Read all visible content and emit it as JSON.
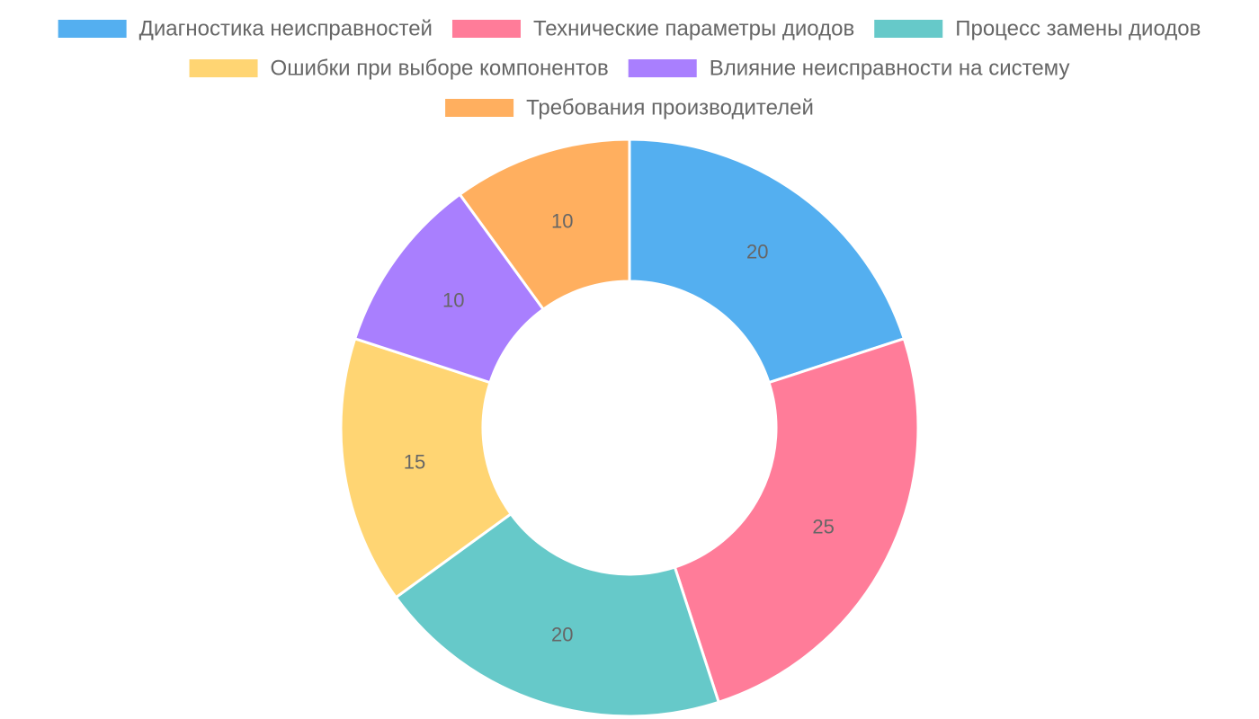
{
  "chart_data": {
    "type": "doughnut",
    "categories": [
      "Диагностика неисправностей",
      "Технические параметры диодов",
      "Процесс замены диодов",
      "Ошибки при выборе компонентов",
      "Влияние неисправности на систему",
      "Требования производителей"
    ],
    "values": [
      20,
      25,
      20,
      15,
      10,
      10
    ],
    "colors": [
      "#54aff0",
      "#ff7c99",
      "#66c9c9",
      "#ffd573",
      "#a97ffe",
      "#ffaf5f"
    ],
    "data_labels": [
      "20",
      "25",
      "20",
      "15",
      "10",
      "10"
    ],
    "legend_position": "top",
    "title": ""
  }
}
